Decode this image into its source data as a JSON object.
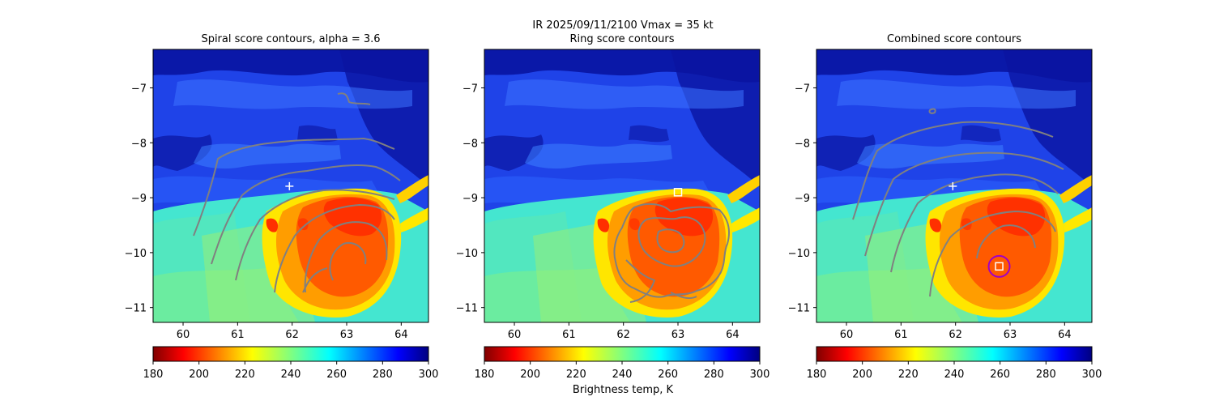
{
  "suptitle_line1": "IR  2025/09/11/2100    Vmax = 35 kt",
  "colorbar_label": "Brightness temp, K",
  "chart_data": [
    {
      "type": "heatmap",
      "title": "Spiral score contours, alpha =  3.6",
      "x_ticks": [
        60,
        61,
        62,
        63,
        64
      ],
      "y_ticks": [
        -7,
        -8,
        -9,
        -10,
        -11
      ],
      "xlim": [
        59.45,
        64.5
      ],
      "ylim": [
        -11.27,
        -6.3
      ],
      "overlay": "spiral score contours (gray)",
      "markers": [
        {
          "symbol": "plus",
          "color": "white",
          "x": 61.95,
          "y": -8.79
        }
      ],
      "colorbar": {
        "ticks": [
          180,
          200,
          220,
          240,
          260,
          280,
          300
        ],
        "range": [
          180,
          300
        ],
        "colormap": "jet_r"
      }
    },
    {
      "type": "heatmap",
      "title": "Ring score contours",
      "x_ticks": [
        60,
        61,
        62,
        63,
        64
      ],
      "y_ticks": [
        -7,
        -8,
        -9,
        -10,
        -11
      ],
      "xlim": [
        59.45,
        64.5
      ],
      "ylim": [
        -11.27,
        -6.3
      ],
      "overlay": "ring score contours (gray)",
      "markers": [
        {
          "symbol": "square",
          "color": "white",
          "x": 63.0,
          "y": -8.9
        }
      ],
      "colorbar": {
        "ticks": [
          180,
          200,
          220,
          240,
          260,
          280,
          300
        ],
        "range": [
          180,
          300
        ],
        "colormap": "jet_r"
      }
    },
    {
      "type": "heatmap",
      "title": "Combined score contours",
      "x_ticks": [
        60,
        61,
        62,
        63,
        64
      ],
      "y_ticks": [
        -7,
        -8,
        -9,
        -10,
        -11
      ],
      "xlim": [
        59.45,
        64.5
      ],
      "ylim": [
        -11.27,
        -6.3
      ],
      "overlay": "combined score contours (gray)",
      "markers": [
        {
          "symbol": "plus",
          "color": "white",
          "x": 61.95,
          "y": -8.79
        },
        {
          "symbol": "square",
          "color": "white",
          "x": 62.8,
          "y": -10.25
        },
        {
          "symbol": "circle",
          "color": "#a000c8",
          "x": 62.8,
          "y": -10.25
        }
      ],
      "colorbar": {
        "ticks": [
          180,
          200,
          220,
          240,
          260,
          280,
          300
        ],
        "range": [
          180,
          300
        ],
        "colormap": "jet_r"
      }
    }
  ]
}
